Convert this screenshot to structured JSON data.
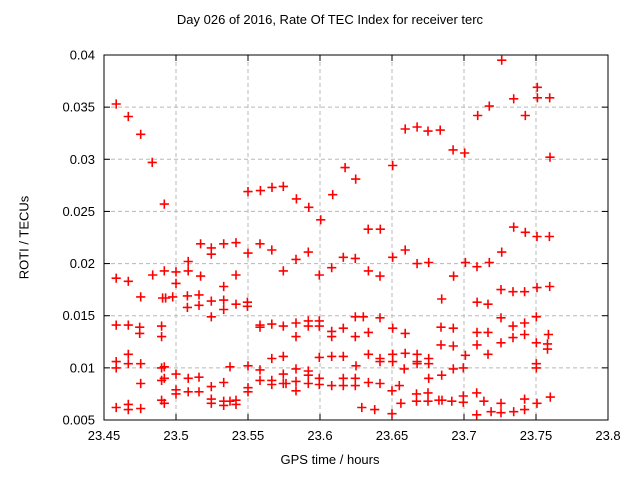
{
  "title": "Day 026 of 2016, Rate Of TEC Index for receiver terc",
  "xlabel": "GPS time / hours",
  "ylabel": "ROTI / TECUs",
  "colors": {
    "marker": "#ff0000",
    "grid": "#b8b8b8",
    "axis": "#000000",
    "background": "#ffffff"
  },
  "chart_data": {
    "type": "scatter",
    "marker": "plus",
    "marker_color": "#ff0000",
    "title": "Day 026 of 2016, Rate Of TEC Index for receiver terc",
    "xlabel": "GPS time / hours",
    "ylabel": "ROTI / TECUs",
    "xlim": [
      23.45,
      23.8
    ],
    "ylim": [
      0.005,
      0.04
    ],
    "xtick_values": [
      23.45,
      23.5,
      23.55,
      23.6,
      23.65,
      23.7,
      23.75,
      23.8
    ],
    "xtick_labels": [
      "23.45",
      "23.5",
      "23.55",
      "23.6",
      "23.65",
      "23.7",
      "23.75",
      "23.8"
    ],
    "ytick_values": [
      0.005,
      0.01,
      0.015,
      0.02,
      0.025,
      0.03,
      0.035,
      0.04
    ],
    "ytick_labels": [
      "0.005",
      "0.01",
      "0.015",
      "0.02",
      "0.025",
      "0.03",
      "0.035",
      "0.04"
    ],
    "grid": true,
    "points": [
      [
        23.4585,
        0.0353
      ],
      [
        23.4669,
        0.0341
      ],
      [
        23.4755,
        0.0324
      ],
      [
        23.4835,
        0.0297
      ],
      [
        23.4919,
        0.0257
      ],
      [
        23.4585,
        0.0186
      ],
      [
        23.4669,
        0.0183
      ],
      [
        23.4838,
        0.0189
      ],
      [
        23.4919,
        0.0193
      ],
      [
        23.5,
        0.0192
      ],
      [
        23.5,
        0.0181
      ],
      [
        23.5085,
        0.0193
      ],
      [
        23.5171,
        0.0188
      ],
      [
        23.4755,
        0.0168
      ],
      [
        23.4907,
        0.0167
      ],
      [
        23.4928,
        0.0167
      ],
      [
        23.4977,
        0.0168
      ],
      [
        23.5079,
        0.0169
      ],
      [
        23.516,
        0.017
      ],
      [
        23.5085,
        0.0202
      ],
      [
        23.5171,
        0.0219
      ],
      [
        23.5245,
        0.0215
      ],
      [
        23.5245,
        0.0209
      ],
      [
        23.5331,
        0.0219
      ],
      [
        23.5331,
        0.0178
      ],
      [
        23.5331,
        0.0165
      ],
      [
        23.5245,
        0.0164
      ],
      [
        23.5079,
        0.0158
      ],
      [
        23.516,
        0.016
      ],
      [
        23.5331,
        0.0156
      ],
      [
        23.5245,
        0.0149
      ],
      [
        23.4585,
        0.0141
      ],
      [
        23.4669,
        0.0141
      ],
      [
        23.4748,
        0.0139
      ],
      [
        23.49,
        0.014
      ],
      [
        23.4748,
        0.0133
      ],
      [
        23.49,
        0.013
      ],
      [
        23.4669,
        0.0113
      ],
      [
        23.4585,
        0.0106
      ],
      [
        23.4585,
        0.01
      ],
      [
        23.4669,
        0.0104
      ],
      [
        23.4755,
        0.0104
      ],
      [
        23.49,
        0.01
      ],
      [
        23.4919,
        0.0101
      ],
      [
        23.4755,
        0.0085
      ],
      [
        23.49,
        0.0088
      ],
      [
        23.4919,
        0.009
      ],
      [
        23.5,
        0.0094
      ],
      [
        23.5085,
        0.009
      ],
      [
        23.516,
        0.0091
      ],
      [
        23.5,
        0.0079
      ],
      [
        23.5,
        0.0075
      ],
      [
        23.5085,
        0.0077
      ],
      [
        23.516,
        0.0077
      ],
      [
        23.5245,
        0.0082
      ],
      [
        23.5331,
        0.0086
      ],
      [
        23.5245,
        0.007
      ],
      [
        23.5245,
        0.0066
      ],
      [
        23.5331,
        0.0068
      ],
      [
        23.5331,
        0.0064
      ],
      [
        23.4585,
        0.0062
      ],
      [
        23.4669,
        0.0065
      ],
      [
        23.4669,
        0.006
      ],
      [
        23.4755,
        0.0061
      ],
      [
        23.49,
        0.0069
      ],
      [
        23.4919,
        0.0066
      ],
      [
        23.5417,
        0.022
      ],
      [
        23.55,
        0.021
      ],
      [
        23.5583,
        0.0219
      ],
      [
        23.5665,
        0.0213
      ],
      [
        23.5833,
        0.0204
      ],
      [
        23.5919,
        0.0211
      ],
      [
        23.6162,
        0.0206
      ],
      [
        23.6245,
        0.0205
      ],
      [
        23.55,
        0.0269
      ],
      [
        23.5586,
        0.027
      ],
      [
        23.5667,
        0.0273
      ],
      [
        23.5745,
        0.0274
      ],
      [
        23.5836,
        0.0262
      ],
      [
        23.5922,
        0.0254
      ],
      [
        23.6005,
        0.0242
      ],
      [
        23.6088,
        0.0266
      ],
      [
        23.6174,
        0.0292
      ],
      [
        23.6248,
        0.0281
      ],
      [
        23.5417,
        0.0189
      ],
      [
        23.5745,
        0.0193
      ],
      [
        23.5995,
        0.0189
      ],
      [
        23.6081,
        0.0196
      ],
      [
        23.5417,
        0.0161
      ],
      [
        23.5496,
        0.0163
      ],
      [
        23.5496,
        0.0159
      ],
      [
        23.5583,
        0.0141
      ],
      [
        23.5583,
        0.0139
      ],
      [
        23.5665,
        0.0142
      ],
      [
        23.5745,
        0.014
      ],
      [
        23.5833,
        0.0143
      ],
      [
        23.5919,
        0.0145
      ],
      [
        23.5919,
        0.014
      ],
      [
        23.5995,
        0.0145
      ],
      [
        23.5995,
        0.014
      ],
      [
        23.5833,
        0.013
      ],
      [
        23.6081,
        0.0135
      ],
      [
        23.6081,
        0.013
      ],
      [
        23.6162,
        0.0138
      ],
      [
        23.5745,
        0.0111
      ],
      [
        23.5995,
        0.011
      ],
      [
        23.6081,
        0.0111
      ],
      [
        23.6162,
        0.0111
      ],
      [
        23.5665,
        0.0109
      ],
      [
        23.5375,
        0.0101
      ],
      [
        23.55,
        0.0102
      ],
      [
        23.5583,
        0.0098
      ],
      [
        23.5745,
        0.0094
      ],
      [
        23.5833,
        0.0099
      ],
      [
        23.5919,
        0.0097
      ],
      [
        23.5919,
        0.0093
      ],
      [
        23.5995,
        0.009
      ],
      [
        23.5583,
        0.0088
      ],
      [
        23.5665,
        0.0088
      ],
      [
        23.5665,
        0.0084
      ],
      [
        23.5745,
        0.0085
      ],
      [
        23.5764,
        0.0085
      ],
      [
        23.5833,
        0.0087
      ],
      [
        23.5919,
        0.0085
      ],
      [
        23.5995,
        0.0084
      ],
      [
        23.6081,
        0.0083
      ],
      [
        23.5833,
        0.0078
      ],
      [
        23.55,
        0.0081
      ],
      [
        23.55,
        0.0077
      ],
      [
        23.6162,
        0.009
      ],
      [
        23.6162,
        0.0083
      ],
      [
        23.6245,
        0.009
      ],
      [
        23.6245,
        0.0083
      ],
      [
        23.5417,
        0.0069
      ],
      [
        23.5417,
        0.0065
      ],
      [
        23.5375,
        0.0068
      ],
      [
        23.6335,
        0.0233
      ],
      [
        23.6419,
        0.0233
      ],
      [
        23.6505,
        0.0294
      ],
      [
        23.6592,
        0.0329
      ],
      [
        23.6674,
        0.0331
      ],
      [
        23.675,
        0.0327
      ],
      [
        23.6835,
        0.0328
      ],
      [
        23.6924,
        0.0309
      ],
      [
        23.7005,
        0.0306
      ],
      [
        23.7095,
        0.0342
      ],
      [
        23.6592,
        0.0213
      ],
      [
        23.6505,
        0.0206
      ],
      [
        23.6674,
        0.02
      ],
      [
        23.6755,
        0.0201
      ],
      [
        23.701,
        0.0201
      ],
      [
        23.709,
        0.0197
      ],
      [
        23.6336,
        0.0193
      ],
      [
        23.6417,
        0.0188
      ],
      [
        23.6928,
        0.0188
      ],
      [
        23.6845,
        0.0166
      ],
      [
        23.7091,
        0.0163
      ],
      [
        23.6301,
        0.0149
      ],
      [
        23.6417,
        0.0148
      ],
      [
        23.6245,
        0.0149
      ],
      [
        23.6505,
        0.0138
      ],
      [
        23.6592,
        0.0133
      ],
      [
        23.6336,
        0.0134
      ],
      [
        23.6245,
        0.013
      ],
      [
        23.684,
        0.0139
      ],
      [
        23.6926,
        0.0138
      ],
      [
        23.709,
        0.0134
      ],
      [
        23.684,
        0.0122
      ],
      [
        23.6926,
        0.0121
      ],
      [
        23.709,
        0.0122
      ],
      [
        23.701,
        0.0112
      ],
      [
        23.6336,
        0.0113
      ],
      [
        23.6505,
        0.0113
      ],
      [
        23.6592,
        0.0114
      ],
      [
        23.6674,
        0.0113
      ],
      [
        23.6417,
        0.0109
      ],
      [
        23.6417,
        0.0106
      ],
      [
        23.6505,
        0.0106
      ],
      [
        23.6674,
        0.0106
      ],
      [
        23.6674,
        0.0104
      ],
      [
        23.6755,
        0.0109
      ],
      [
        23.6755,
        0.0104
      ],
      [
        23.625,
        0.0102
      ],
      [
        23.6585,
        0.0099
      ],
      [
        23.6926,
        0.0099
      ],
      [
        23.6995,
        0.01
      ],
      [
        23.6336,
        0.0086
      ],
      [
        23.6417,
        0.0085
      ],
      [
        23.65,
        0.0078
      ],
      [
        23.6551,
        0.0083
      ],
      [
        23.6755,
        0.009
      ],
      [
        23.6845,
        0.0093
      ],
      [
        23.6562,
        0.0066
      ],
      [
        23.65,
        0.0056
      ],
      [
        23.667,
        0.0075
      ],
      [
        23.667,
        0.0068
      ],
      [
        23.675,
        0.0076
      ],
      [
        23.675,
        0.0068
      ],
      [
        23.6826,
        0.0069
      ],
      [
        23.6847,
        0.0069
      ],
      [
        23.6915,
        0.0068
      ],
      [
        23.6995,
        0.0073
      ],
      [
        23.6995,
        0.0067
      ],
      [
        23.7088,
        0.0076
      ],
      [
        23.7088,
        0.0055
      ],
      [
        23.629,
        0.0062
      ],
      [
        23.638,
        0.006
      ],
      [
        23.7262,
        0.0395
      ],
      [
        23.7176,
        0.0351
      ],
      [
        23.7345,
        0.0358
      ],
      [
        23.7426,
        0.0342
      ],
      [
        23.7509,
        0.0369
      ],
      [
        23.751,
        0.0359
      ],
      [
        23.7595,
        0.0359
      ],
      [
        23.7597,
        0.0302
      ],
      [
        23.7345,
        0.0235
      ],
      [
        23.7426,
        0.023
      ],
      [
        23.7507,
        0.0226
      ],
      [
        23.7593,
        0.0226
      ],
      [
        23.7262,
        0.0211
      ],
      [
        23.7176,
        0.0201
      ],
      [
        23.7257,
        0.0175
      ],
      [
        23.734,
        0.0173
      ],
      [
        23.7421,
        0.0173
      ],
      [
        23.7507,
        0.0177
      ],
      [
        23.7595,
        0.0178
      ],
      [
        23.7167,
        0.0161
      ],
      [
        23.7257,
        0.0148
      ],
      [
        23.7502,
        0.0149
      ],
      [
        23.734,
        0.014
      ],
      [
        23.7421,
        0.0143
      ],
      [
        23.7167,
        0.0134
      ],
      [
        23.7421,
        0.0132
      ],
      [
        23.734,
        0.0129
      ],
      [
        23.7257,
        0.0124
      ],
      [
        23.7586,
        0.0132
      ],
      [
        23.7502,
        0.0124
      ],
      [
        23.758,
        0.0123
      ],
      [
        23.758,
        0.0118
      ],
      [
        23.7167,
        0.0113
      ],
      [
        23.7502,
        0.0104
      ],
      [
        23.7502,
        0.01
      ],
      [
        23.7599,
        0.0072
      ],
      [
        23.7421,
        0.007
      ],
      [
        23.7138,
        0.0068
      ],
      [
        23.7257,
        0.0066
      ],
      [
        23.7507,
        0.0066
      ],
      [
        23.7188,
        0.0058
      ],
      [
        23.7257,
        0.0057
      ],
      [
        23.7345,
        0.0058
      ],
      [
        23.7421,
        0.006
      ]
    ]
  }
}
